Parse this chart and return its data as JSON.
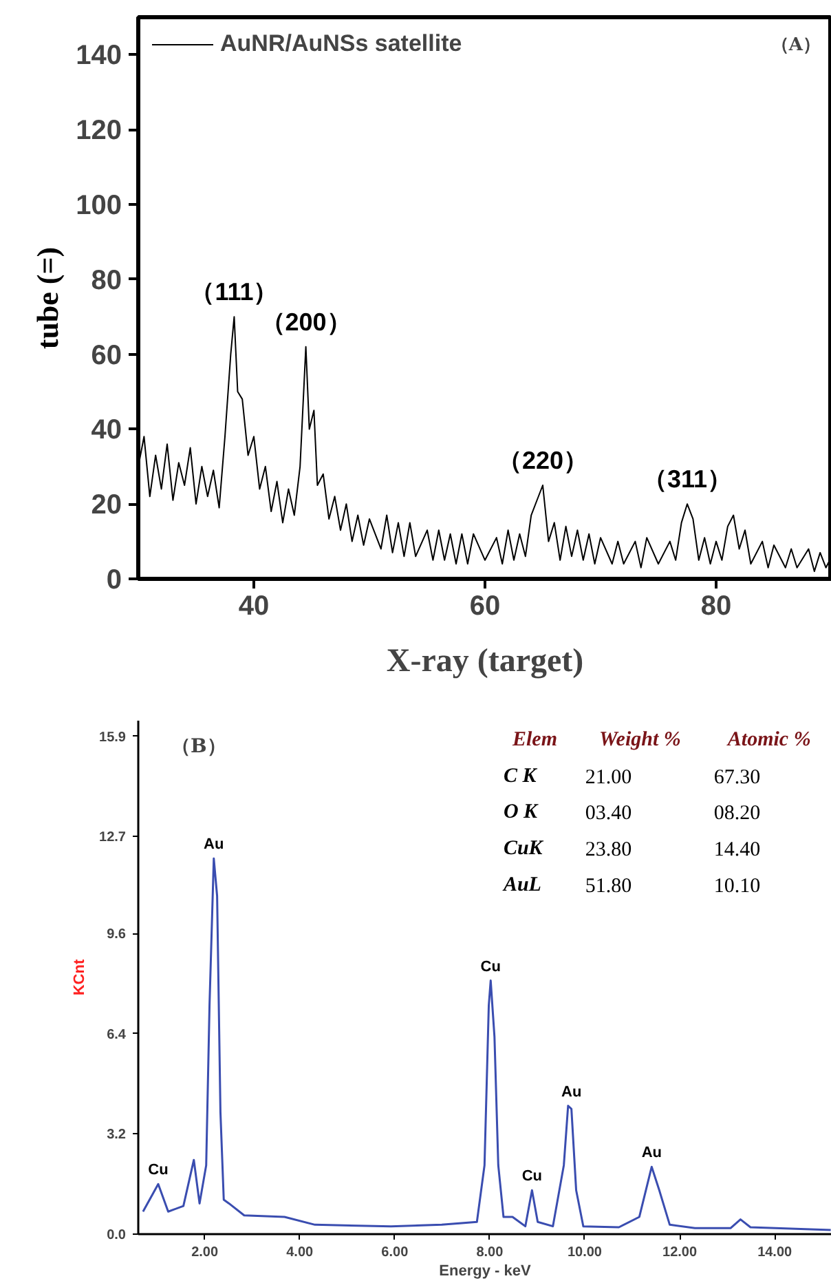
{
  "chart_data": [
    {
      "type": "line",
      "xlabel": "X-ray (target)",
      "ylabel": "tube (=)",
      "xlim": [
        30,
        90
      ],
      "ylim": [
        0,
        150
      ],
      "xticks": [
        40,
        60,
        80
      ],
      "yticks": [
        0,
        20,
        40,
        60,
        80,
        100,
        120,
        140
      ],
      "legend": "top left",
      "grid": false,
      "series": [
        {
          "name": "AuNR/AuNSs satellite",
          "color": "#000000",
          "x": [
            30,
            30.5,
            31,
            31.5,
            32,
            32.5,
            33,
            33.5,
            34,
            34.5,
            35,
            35.5,
            36,
            36.5,
            37,
            37.5,
            38,
            38.3,
            38.6,
            39,
            39.5,
            40,
            40.5,
            41,
            41.5,
            42,
            42.5,
            43,
            43.5,
            44,
            44.5,
            44.8,
            45.2,
            45.5,
            46,
            46.5,
            47,
            47.5,
            48,
            48.5,
            49,
            49.5,
            50,
            51,
            51.5,
            52,
            52.5,
            53,
            53.5,
            54,
            55,
            55.5,
            56,
            56.5,
            57,
            57.5,
            58,
            58.5,
            59,
            60,
            61,
            61.5,
            62,
            62.5,
            63,
            63.5,
            64,
            64.5,
            65,
            65.5,
            66,
            66.5,
            67,
            67.5,
            68,
            68.5,
            69,
            69.5,
            70,
            71,
            71.5,
            72,
            73,
            73.5,
            74,
            75,
            76,
            76.5,
            77,
            77.5,
            78,
            78.5,
            79,
            79.5,
            80,
            80.5,
            81,
            81.5,
            82,
            82.5,
            83,
            84,
            84.5,
            85,
            86,
            86.5,
            87,
            88,
            88.5,
            89,
            89.5,
            90
          ],
          "values": [
            30,
            38,
            22,
            33,
            24,
            36,
            21,
            31,
            25,
            35,
            20,
            30,
            22,
            29,
            19,
            38,
            60,
            70,
            50,
            48,
            33,
            38,
            24,
            30,
            18,
            26,
            15,
            24,
            17,
            30,
            62,
            40,
            45,
            25,
            28,
            16,
            22,
            13,
            20,
            10,
            17,
            9,
            16,
            8,
            17,
            7,
            15,
            6,
            15,
            6,
            13,
            5,
            13,
            5,
            12,
            4,
            12,
            4,
            12,
            5,
            11,
            4,
            13,
            5,
            12,
            6,
            17,
            21,
            25,
            10,
            15,
            5,
            14,
            6,
            13,
            5,
            12,
            4,
            11,
            4,
            10,
            4,
            10,
            3,
            11,
            4,
            10,
            5,
            15,
            20,
            16,
            5,
            11,
            4,
            10,
            5,
            14,
            17,
            8,
            13,
            4,
            10,
            3,
            9,
            3,
            8,
            3,
            8,
            2,
            7,
            3,
            6
          ]
        }
      ],
      "annotations": [
        "（A）",
        {
          "text": "（111）",
          "x": 38.3,
          "y": 70
        },
        {
          "text": "（200）",
          "x": 44.5,
          "y": 62
        },
        {
          "text": "（220）",
          "x": 65,
          "y": 25
        },
        {
          "text": "（311）",
          "x": 77.5,
          "y": 20
        }
      ]
    },
    {
      "type": "line",
      "xlabel": "Energy - keV",
      "ylabel": "KCnt",
      "xlim": [
        0.6,
        15.2
      ],
      "ylim": [
        0,
        16.4
      ],
      "xticks": [
        {
          "value": 2,
          "label": "2.00"
        },
        {
          "value": 4,
          "label": "4.00"
        },
        {
          "value": 6,
          "label": "6.00"
        },
        {
          "value": 8,
          "label": "8.00"
        },
        {
          "value": 10,
          "label": "10.00"
        },
        {
          "value": 12,
          "label": "12.00"
        },
        {
          "value": 14,
          "label": "14.00"
        }
      ],
      "yticks": [
        {
          "value": 0,
          "label": "0.0"
        },
        3.2,
        6.4,
        9.6,
        12.7,
        15.9
      ],
      "grid": false,
      "series": [
        {
          "color": "#3a4db0",
          "x": [
            0.7,
            1.02,
            1.23,
            1.55,
            1.77,
            1.89,
            2.03,
            2.1,
            2.19,
            2.26,
            2.33,
            2.4,
            2.51,
            2.83,
            3.68,
            4.32,
            5.92,
            6.99,
            7.73,
            7.89,
            7.98,
            8.02,
            8.1,
            8.18,
            8.29,
            8.48,
            8.75,
            8.89,
            9.01,
            9.33,
            9.56,
            9.65,
            9.72,
            9.82,
            9.97,
            10.72,
            11.15,
            11.41,
            11.57,
            11.79,
            12.32,
            13.07,
            13.28,
            13.49,
            15.18
          ],
          "values": [
            0.72,
            1.6,
            0.72,
            0.9,
            2.37,
            0.98,
            2.2,
            7.3,
            12.0,
            10.8,
            3.9,
            1.1,
            0.98,
            0.6,
            0.55,
            0.3,
            0.25,
            0.3,
            0.39,
            2.2,
            7.3,
            8.1,
            6.3,
            2.2,
            0.55,
            0.55,
            0.25,
            1.4,
            0.39,
            0.25,
            2.2,
            4.1,
            4.0,
            1.4,
            0.25,
            0.22,
            0.55,
            2.15,
            1.4,
            0.3,
            0.19,
            0.19,
            0.47,
            0.22,
            0.13
          ]
        }
      ],
      "annotations": [
        "（B）",
        {
          "text": "Cu",
          "x": 1.02,
          "y": 1.6
        },
        {
          "text": "Au",
          "x": 2.19,
          "y": 12.0
        },
        {
          "text": "Cu",
          "x": 8.02,
          "y": 8.1
        },
        {
          "text": "Cu",
          "x": 8.89,
          "y": 1.4
        },
        {
          "text": "Au",
          "x": 9.72,
          "y": 4.1
        },
        {
          "text": "Au",
          "x": 11.41,
          "y": 2.15
        },
        "Elem",
        "Weight %",
        "Atomic %",
        "C K",
        "21.00",
        "67.30",
        "O K",
        "03.40",
        "08.20",
        "CuK",
        "23.80",
        "14.40",
        "AuL",
        "51.80",
        "10.10"
      ]
    }
  ]
}
